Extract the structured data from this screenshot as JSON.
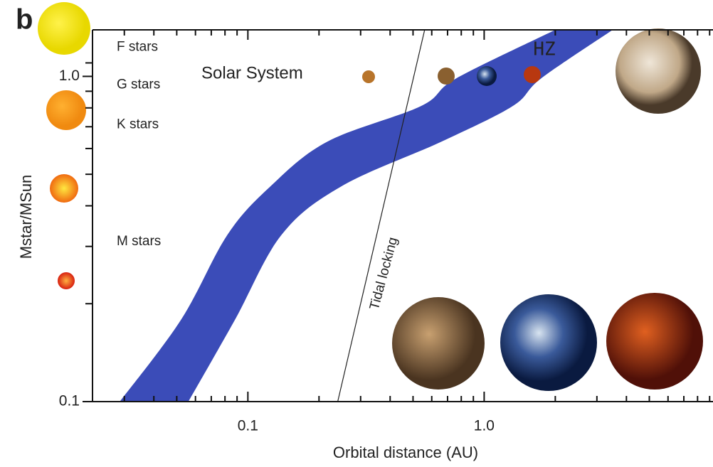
{
  "chart_data": {
    "type": "band",
    "panel_label": "b",
    "x_label": "Orbital distance (AU)",
    "y_label": "Mstar/MSun",
    "log_x": true,
    "log_y": true,
    "xlim": [
      0.022,
      9.3
    ],
    "ylim": [
      0.1,
      1.39
    ],
    "xticks": [
      0.1,
      {
        "value": 1,
        "label": "1.0"
      }
    ],
    "yticks": [
      0.1,
      {
        "value": 1,
        "label": "1.0"
      }
    ],
    "xminor": [
      0.03,
      0.04,
      0.05,
      0.06,
      0.07,
      0.08,
      0.09,
      0.2,
      0.3,
      0.4,
      0.5,
      0.6,
      0.7,
      0.8,
      0.9,
      2,
      3,
      4,
      5,
      6,
      7,
      8,
      9
    ],
    "yminor": [
      0.2,
      0.3,
      0.4,
      0.5,
      0.6,
      0.7,
      0.8,
      0.9,
      1.1
    ],
    "hz": {
      "label": "HZ",
      "color": "#3b4cb8",
      "mass": [
        0.1,
        0.178,
        0.326,
        0.46,
        0.63,
        0.81,
        0.985,
        1.39
      ],
      "inner": [
        0.0287,
        0.052,
        0.082,
        0.125,
        0.217,
        0.54,
        0.76,
        2.0
      ],
      "outer": [
        0.056,
        0.088,
        0.139,
        0.25,
        0.66,
        1.32,
        1.74,
        3.5
      ]
    },
    "tidal_locking": {
      "label": "Tidal locking",
      "x": [
        0.24,
        0.56
      ],
      "y": [
        0.1,
        1.39
      ]
    },
    "star_types": [
      {
        "label": "F stars",
        "mass": 1.23
      },
      {
        "label": "G stars",
        "mass": 0.94
      },
      {
        "label": "K stars",
        "mass": 0.71
      },
      {
        "label": "M stars",
        "mass": 0.31
      }
    ],
    "solar_system_label": "Solar System"
  }
}
